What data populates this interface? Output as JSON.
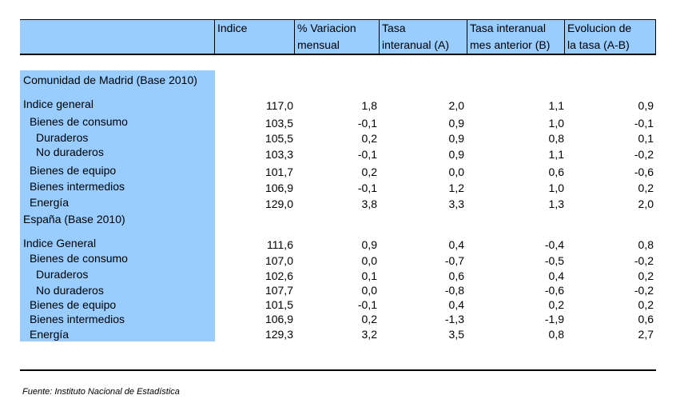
{
  "headers": {
    "indice": "Indice",
    "variacion": [
      "% Variacion",
      "mensual"
    ],
    "tasa_a": [
      "Tasa",
      "interanual (A)"
    ],
    "tasa_b": [
      "Tasa interanual",
      "mes anterior (B)"
    ],
    "evolucion": [
      "Evolucion de",
      "la tasa (A-B)"
    ]
  },
  "sections": [
    {
      "title": "Comunidad de Madrid (Base 2010)",
      "rows": [
        {
          "label": "Indice general",
          "indice": "117,0",
          "variacion": "1,8",
          "tasa_a": "2,0",
          "tasa_b": "1,1",
          "evolucion": "0,9"
        },
        {
          "label": "Bienes de consumo",
          "indice": "103,5",
          "variacion": "-0,1",
          "tasa_a": "0,9",
          "tasa_b": "1,0",
          "evolucion": "-0,1"
        },
        {
          "label": "Duraderos",
          "indice": "105,5",
          "variacion": "0,2",
          "tasa_a": "0,9",
          "tasa_b": "0,8",
          "evolucion": "0,1"
        },
        {
          "label": "No duraderos",
          "indice": "103,3",
          "variacion": "-0,1",
          "tasa_a": "0,9",
          "tasa_b": "1,1",
          "evolucion": "-0,2"
        },
        {
          "label": "Bienes de equipo",
          "indice": "101,7",
          "variacion": "0,2",
          "tasa_a": "0,0",
          "tasa_b": "0,6",
          "evolucion": "-0,6"
        },
        {
          "label": "Bienes intermedios",
          "indice": "106,9",
          "variacion": "-0,1",
          "tasa_a": "1,2",
          "tasa_b": "1,0",
          "evolucion": "0,2"
        },
        {
          "label": "Energía",
          "indice": "129,0",
          "variacion": "3,8",
          "tasa_a": "3,3",
          "tasa_b": "1,3",
          "evolucion": "2,0"
        }
      ]
    },
    {
      "title": "España (Base 2010)",
      "rows": [
        {
          "label": "Indice General",
          "indice": "111,6",
          "variacion": "0,9",
          "tasa_a": "0,4",
          "tasa_b": "-0,4",
          "evolucion": "0,8"
        },
        {
          "label": "Bienes de consumo",
          "indice": "107,0",
          "variacion": "0,0",
          "tasa_a": "-0,7",
          "tasa_b": "-0,5",
          "evolucion": "-0,2"
        },
        {
          "label": "Duraderos",
          "indice": "102,6",
          "variacion": "0,1",
          "tasa_a": "0,6",
          "tasa_b": "0,4",
          "evolucion": "0,2"
        },
        {
          "label": "No duraderos",
          "indice": "107,7",
          "variacion": "0,0",
          "tasa_a": "-0,8",
          "tasa_b": "-0,6",
          "evolucion": "-0,2"
        },
        {
          "label": "Bienes de equipo",
          "indice": "101,5",
          "variacion": "-0,1",
          "tasa_a": "0,4",
          "tasa_b": "0,2",
          "evolucion": "0,2"
        },
        {
          "label": "Bienes intermedios",
          "indice": "106,9",
          "variacion": "0,2",
          "tasa_a": "-1,3",
          "tasa_b": "-1,9",
          "evolucion": "0,6"
        },
        {
          "label": "Energía",
          "indice": "129,3",
          "variacion": "3,2",
          "tasa_a": "3,5",
          "tasa_b": "0,8",
          "evolucion": "2,7"
        }
      ]
    }
  ],
  "source": "Fuente: Instituto Nacional de Estadística",
  "colors": {
    "header_bg": "#99ccff",
    "label_bg": "#99ccff"
  }
}
